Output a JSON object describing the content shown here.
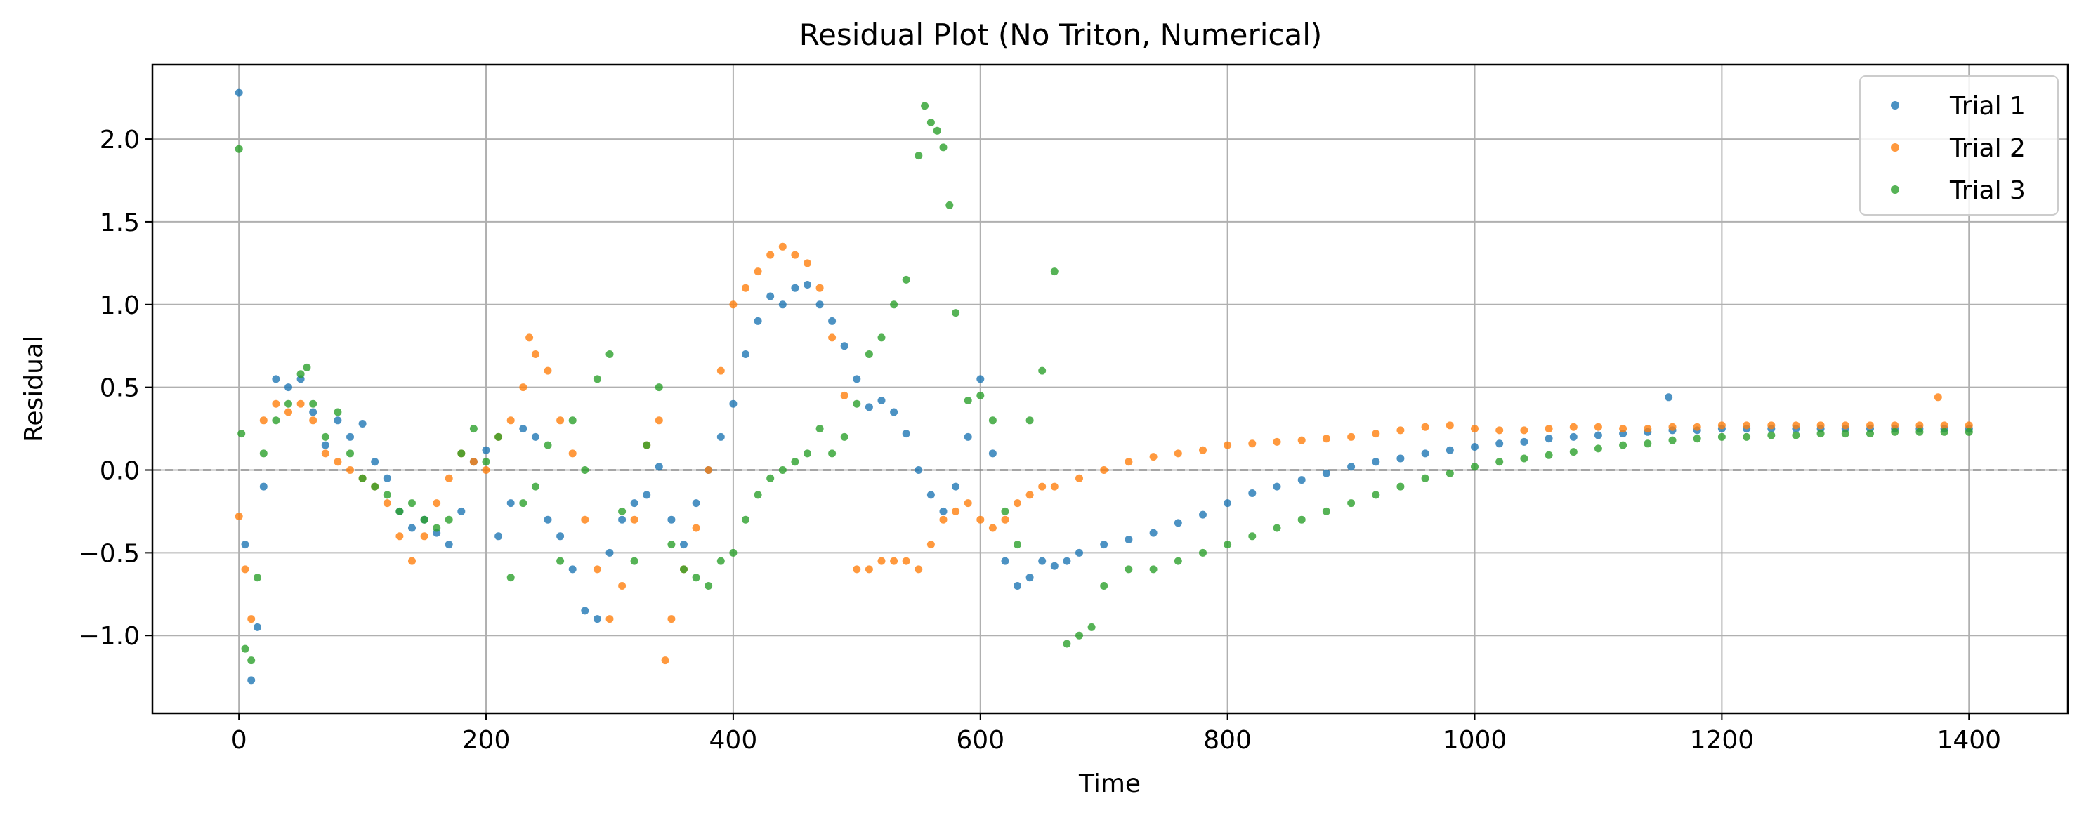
{
  "chart_data": {
    "type": "scatter",
    "title": "Residual Plot (No Triton, Numerical)",
    "xlabel": "Time",
    "ylabel": "Residual",
    "xlim": [
      -70,
      1480
    ],
    "ylim": [
      -1.47,
      2.45
    ],
    "xticks": [
      0,
      200,
      400,
      600,
      800,
      1000,
      1200,
      1400
    ],
    "yticks": [
      -1.0,
      -0.5,
      0.0,
      0.5,
      1.0,
      1.5,
      2.0
    ],
    "xtick_labels": [
      "0",
      "200",
      "400",
      "600",
      "800",
      "1000",
      "1200",
      "1400"
    ],
    "ytick_labels": [
      "−1.0",
      "−0.5",
      "0.0",
      "0.5",
      "1.0",
      "1.5",
      "2.0"
    ],
    "grid": true,
    "reference_line": {
      "y": 0.0,
      "style": "dashed",
      "color": "#888888"
    },
    "legend": {
      "location": "top-right"
    },
    "series": [
      {
        "name": "Trial 1",
        "color": "#1f77b4",
        "x": [
          0,
          5,
          10,
          15,
          20,
          30,
          40,
          50,
          60,
          70,
          80,
          90,
          100,
          110,
          120,
          130,
          140,
          150,
          160,
          170,
          180,
          190,
          200,
          210,
          220,
          230,
          240,
          250,
          260,
          270,
          280,
          290,
          300,
          310,
          320,
          330,
          340,
          350,
          360,
          370,
          380,
          390,
          400,
          410,
          420,
          430,
          440,
          450,
          460,
          470,
          480,
          490,
          500,
          510,
          520,
          530,
          540,
          550,
          560,
          570,
          580,
          590,
          600,
          610,
          620,
          630,
          640,
          650,
          660,
          670,
          680,
          700,
          720,
          740,
          760,
          780,
          800,
          820,
          840,
          860,
          880,
          900,
          920,
          940,
          960,
          980,
          1000,
          1020,
          1040,
          1060,
          1080,
          1100,
          1120,
          1140,
          1157,
          1160,
          1180,
          1200,
          1220,
          1240,
          1260,
          1280,
          1300,
          1320,
          1340,
          1360,
          1380,
          1400
        ],
        "y": [
          2.28,
          -0.45,
          -1.27,
          -0.95,
          -0.1,
          0.55,
          0.5,
          0.55,
          0.35,
          0.15,
          0.3,
          0.2,
          0.28,
          0.05,
          -0.05,
          -0.25,
          -0.35,
          -0.3,
          -0.38,
          -0.45,
          -0.25,
          0.05,
          0.12,
          -0.4,
          -0.2,
          0.25,
          0.2,
          -0.3,
          -0.4,
          -0.6,
          -0.85,
          -0.9,
          -0.5,
          -0.3,
          -0.2,
          -0.15,
          0.02,
          -0.3,
          -0.45,
          -0.2,
          0.0,
          0.2,
          0.4,
          0.7,
          0.9,
          1.05,
          1.0,
          1.1,
          1.12,
          1.0,
          0.9,
          0.75,
          0.55,
          0.38,
          0.42,
          0.35,
          0.22,
          0.0,
          -0.15,
          -0.25,
          -0.1,
          0.2,
          0.55,
          0.1,
          -0.55,
          -0.7,
          -0.65,
          -0.55,
          -0.58,
          -0.55,
          -0.5,
          -0.45,
          -0.42,
          -0.38,
          -0.32,
          -0.27,
          -0.2,
          -0.14,
          -0.1,
          -0.06,
          -0.02,
          0.02,
          0.05,
          0.07,
          0.1,
          0.12,
          0.14,
          0.16,
          0.17,
          0.19,
          0.2,
          0.21,
          0.22,
          0.23,
          0.44,
          0.24,
          0.24,
          0.25,
          0.25,
          0.25,
          0.25,
          0.25,
          0.25,
          0.25,
          0.25,
          0.25,
          0.25,
          0.25
        ]
      },
      {
        "name": "Trial 2",
        "color": "#ff7f0e",
        "x": [
          0,
          5,
          10,
          20,
          30,
          40,
          50,
          60,
          70,
          80,
          90,
          100,
          110,
          120,
          130,
          140,
          150,
          160,
          170,
          180,
          190,
          200,
          210,
          220,
          230,
          235,
          240,
          250,
          260,
          270,
          280,
          290,
          300,
          310,
          320,
          330,
          340,
          345,
          350,
          360,
          370,
          380,
          390,
          400,
          410,
          420,
          430,
          440,
          450,
          460,
          470,
          480,
          490,
          500,
          510,
          520,
          530,
          540,
          550,
          560,
          570,
          580,
          590,
          600,
          610,
          620,
          630,
          640,
          650,
          660,
          680,
          700,
          720,
          740,
          760,
          780,
          800,
          820,
          840,
          860,
          880,
          900,
          920,
          940,
          960,
          980,
          1000,
          1020,
          1040,
          1060,
          1080,
          1100,
          1120,
          1140,
          1160,
          1180,
          1200,
          1220,
          1240,
          1260,
          1280,
          1300,
          1320,
          1340,
          1360,
          1375,
          1380,
          1400
        ],
        "y": [
          -0.28,
          -0.6,
          -0.9,
          0.3,
          0.4,
          0.35,
          0.4,
          0.3,
          0.1,
          0.05,
          0.0,
          -0.05,
          -0.1,
          -0.2,
          -0.4,
          -0.55,
          -0.4,
          -0.2,
          -0.05,
          0.1,
          0.05,
          0.0,
          0.2,
          0.3,
          0.5,
          0.8,
          0.7,
          0.6,
          0.3,
          0.1,
          -0.3,
          -0.6,
          -0.9,
          -0.7,
          -0.3,
          0.15,
          0.3,
          -1.15,
          -0.9,
          -0.6,
          -0.35,
          0.0,
          0.6,
          1.0,
          1.1,
          1.2,
          1.3,
          1.35,
          1.3,
          1.25,
          1.1,
          0.8,
          0.45,
          -0.6,
          -0.6,
          -0.55,
          -0.55,
          -0.55,
          -0.6,
          -0.45,
          -0.3,
          -0.25,
          -0.2,
          -0.3,
          -0.35,
          -0.3,
          -0.2,
          -0.15,
          -0.1,
          -0.1,
          -0.05,
          0.0,
          0.05,
          0.08,
          0.1,
          0.12,
          0.15,
          0.16,
          0.17,
          0.18,
          0.19,
          0.2,
          0.22,
          0.24,
          0.26,
          0.27,
          0.25,
          0.24,
          0.24,
          0.25,
          0.26,
          0.26,
          0.25,
          0.25,
          0.26,
          0.26,
          0.27,
          0.27,
          0.27,
          0.27,
          0.27,
          0.27,
          0.27,
          0.27,
          0.27,
          0.44,
          0.27,
          0.27
        ]
      },
      {
        "name": "Trial 3",
        "color": "#2ca02c",
        "x": [
          0,
          2,
          5,
          10,
          15,
          20,
          30,
          40,
          50,
          55,
          60,
          70,
          80,
          90,
          100,
          110,
          120,
          130,
          140,
          150,
          160,
          170,
          180,
          190,
          200,
          210,
          220,
          230,
          240,
          250,
          260,
          270,
          280,
          290,
          300,
          310,
          320,
          330,
          340,
          350,
          360,
          370,
          380,
          390,
          400,
          410,
          420,
          430,
          440,
          450,
          460,
          470,
          480,
          490,
          500,
          510,
          520,
          530,
          540,
          550,
          555,
          560,
          565,
          570,
          575,
          580,
          590,
          600,
          610,
          620,
          630,
          640,
          650,
          660,
          670,
          680,
          690,
          700,
          720,
          740,
          760,
          780,
          800,
          820,
          840,
          860,
          880,
          900,
          920,
          940,
          960,
          980,
          1000,
          1020,
          1040,
          1060,
          1080,
          1100,
          1120,
          1140,
          1160,
          1180,
          1200,
          1220,
          1240,
          1260,
          1280,
          1300,
          1320,
          1340,
          1360,
          1380,
          1400
        ],
        "y": [
          1.94,
          0.22,
          -1.08,
          -1.15,
          -0.65,
          0.1,
          0.3,
          0.4,
          0.58,
          0.62,
          0.4,
          0.2,
          0.35,
          0.1,
          -0.05,
          -0.1,
          -0.15,
          -0.25,
          -0.2,
          -0.3,
          -0.35,
          -0.3,
          0.1,
          0.25,
          0.05,
          0.2,
          -0.65,
          -0.2,
          -0.1,
          0.15,
          -0.55,
          0.3,
          0.0,
          0.55,
          0.7,
          -0.25,
          -0.55,
          0.15,
          0.5,
          -0.45,
          -0.6,
          -0.65,
          -0.7,
          -0.55,
          -0.5,
          -0.3,
          -0.15,
          -0.05,
          0.0,
          0.05,
          0.1,
          0.25,
          0.1,
          0.2,
          0.4,
          0.7,
          0.8,
          1.0,
          1.15,
          1.9,
          2.2,
          2.1,
          2.05,
          1.95,
          1.6,
          0.95,
          0.42,
          0.45,
          0.3,
          -0.25,
          -0.45,
          0.3,
          0.6,
          1.2,
          -1.05,
          -1.0,
          -0.95,
          -0.7,
          -0.6,
          -0.6,
          -0.55,
          -0.5,
          -0.45,
          -0.4,
          -0.35,
          -0.3,
          -0.25,
          -0.2,
          -0.15,
          -0.1,
          -0.05,
          -0.02,
          0.02,
          0.05,
          0.07,
          0.09,
          0.11,
          0.13,
          0.15,
          0.16,
          0.18,
          0.19,
          0.2,
          0.2,
          0.21,
          0.21,
          0.22,
          0.22,
          0.22,
          0.23,
          0.23,
          0.23,
          0.23
        ]
      }
    ]
  }
}
